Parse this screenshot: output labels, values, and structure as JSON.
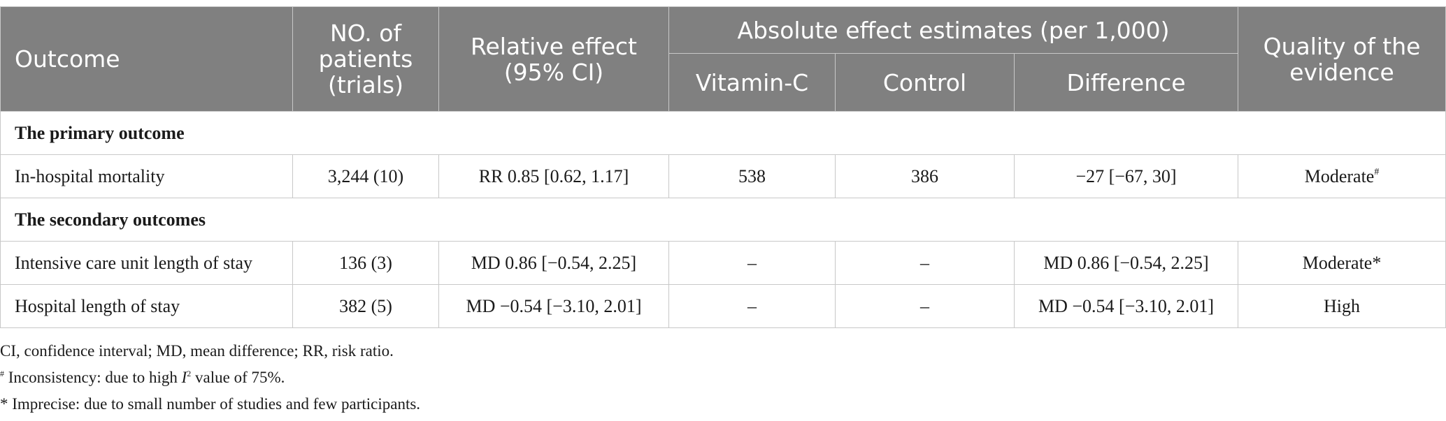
{
  "table": {
    "headers": {
      "outcome": "Outcome",
      "patients": "NO. of patients (trials)",
      "relative_effect": "Relative effect (95% CI)",
      "absolute_group": "Absolute effect estimates (per 1,000)",
      "vitamin_c": "Vitamin-C",
      "control": "Control",
      "difference": "Difference",
      "quality": "Quality of the evidence"
    },
    "sections": [
      {
        "title": "The primary outcome",
        "rows": [
          {
            "outcome": "In-hospital mortality",
            "patients": "3,244 (10)",
            "relative": "RR 0.85 [0.62, 1.17]",
            "vitamin_c": "538",
            "control": "386",
            "difference": "−27 [−67, 30]",
            "quality": "Moderate",
            "quality_mark": "#"
          }
        ]
      },
      {
        "title": "The secondary outcomes",
        "rows": [
          {
            "outcome": "Intensive care unit length of stay",
            "patients": "136 (3)",
            "relative": "MD 0.86 [−0.54, 2.25]",
            "vitamin_c": "–",
            "control": "–",
            "difference": "MD 0.86 [−0.54, 2.25]",
            "quality": "Moderate*"
          },
          {
            "outcome": "Hospital length of stay",
            "patients": "382 (5)",
            "relative": "MD −0.54 [−3.10, 2.01]",
            "vitamin_c": "–",
            "control": "–",
            "difference": "MD −0.54 [−3.10, 2.01]",
            "quality": "High"
          }
        ]
      }
    ]
  },
  "footnotes": {
    "abbreviations": "CI, confidence interval; MD, mean difference; RR, risk ratio.",
    "hash_mark": "#",
    "hash_note_pre": "Inconsistency: due to high",
    "hash_note_var": "I",
    "hash_note_sup": "2",
    "hash_note_post": "value of 75%.",
    "star_note": "* Imprecise: due to small number of studies and few participants."
  }
}
